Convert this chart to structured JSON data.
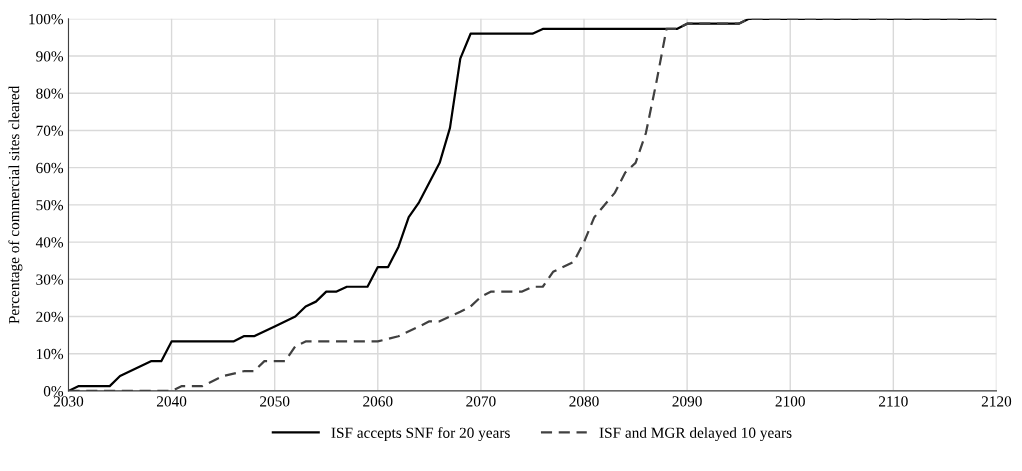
{
  "chart_data": {
    "type": "line",
    "ylabel": "Percentage of commercial sites cleared",
    "xlim": [
      2030,
      2120
    ],
    "xticks": [
      2030,
      2040,
      2050,
      2060,
      2070,
      2080,
      2090,
      2100,
      2110,
      2120
    ],
    "ylim": [
      0,
      100
    ],
    "yticks": [
      {
        "value": 0,
        "label": "0%"
      },
      {
        "value": 10,
        "label": "10%"
      },
      {
        "value": 20,
        "label": "20%"
      },
      {
        "value": 30,
        "label": "30%"
      },
      {
        "value": 40,
        "label": "40%"
      },
      {
        "value": 50,
        "label": "50%"
      },
      {
        "value": 60,
        "label": "60%"
      },
      {
        "value": 70,
        "label": "70%"
      },
      {
        "value": 80,
        "label": "80%"
      },
      {
        "value": 90,
        "label": "90%"
      },
      {
        "value": 100,
        "label": "100%"
      }
    ],
    "grid": true,
    "legend": "bottom",
    "series": [
      {
        "name": "ISF accepts SNF for 20 years",
        "color": "#000000",
        "line_style": "solid",
        "x": [
          2030,
          2031,
          2034,
          2035,
          2038,
          2039,
          2040,
          2046,
          2047,
          2048,
          2050,
          2052,
          2053,
          2054,
          2055,
          2056,
          2057,
          2059,
          2060,
          2061,
          2062,
          2063,
          2064,
          2065,
          2066,
          2067,
          2068,
          2069,
          2075,
          2076,
          2089,
          2090,
          2095,
          2096,
          2120
        ],
        "values": [
          0,
          1.3,
          1.3,
          4,
          8,
          8,
          13.3,
          13.3,
          14.7,
          14.7,
          17.3,
          20,
          22.7,
          24,
          26.7,
          26.7,
          28,
          28,
          33.3,
          33.3,
          38.7,
          46.7,
          50.7,
          56,
          61.3,
          70.7,
          89.3,
          96,
          96,
          97.3,
          97.3,
          98.7,
          98.7,
          100,
          100
        ]
      },
      {
        "name": "ISF and MGR delayed 10 years",
        "color": "#404040",
        "line_style": "dashed",
        "x": [
          2030,
          2040,
          2041,
          2043,
          2045,
          2047,
          2048,
          2049,
          2051,
          2052,
          2053,
          2060,
          2062,
          2064,
          2065,
          2066,
          2068,
          2069,
          2070,
          2071,
          2074,
          2075,
          2076,
          2077,
          2079,
          2080,
          2081,
          2083,
          2084,
          2085,
          2086,
          2087,
          2088,
          2089,
          2090,
          2095,
          2096,
          2120
        ],
        "values": [
          0,
          0,
          1.3,
          1.3,
          4,
          5.3,
          5.3,
          8,
          8,
          12,
          13.3,
          13.3,
          14.7,
          17.3,
          18.7,
          18.7,
          21.3,
          22.7,
          25.3,
          26.7,
          26.7,
          28,
          28,
          32,
          34.7,
          40,
          46.7,
          53.3,
          58.7,
          61.3,
          69.3,
          82.7,
          97.3,
          97.3,
          98.7,
          98.7,
          100,
          100
        ]
      }
    ]
  }
}
